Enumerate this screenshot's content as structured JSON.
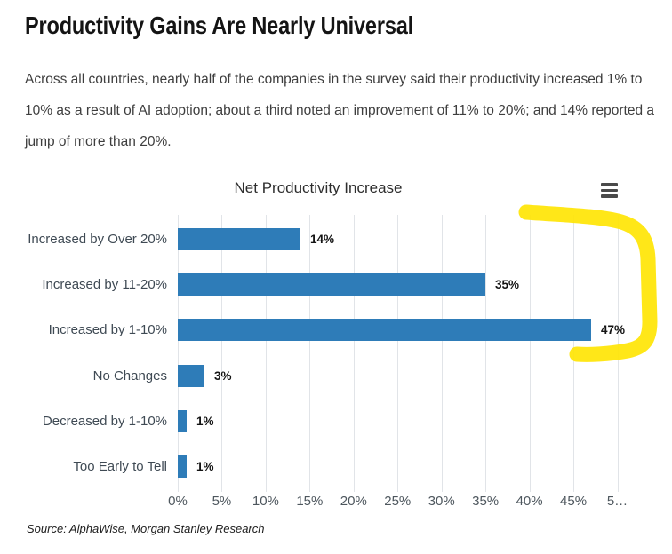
{
  "page": {
    "title": "Productivity Gains Are Nearly Universal",
    "intro": "Across all countries, nearly half of the companies in the survey said their productivity increased 1% to 10% as a result of AI adoption; about a third noted an improvement of 11% to 20%; and 14% reported a jump of more than 20%.",
    "source": "Source: AlphaWise, Morgan Stanley Research"
  },
  "chart": {
    "menu_icon": "hamburger-menu-icon"
  },
  "chart_data": {
    "type": "bar",
    "orientation": "horizontal",
    "title": "Net Productivity Increase",
    "categories": [
      "Increased by Over 20%",
      "Increased by 11-20%",
      "Increased by 1-10%",
      "No Changes",
      "Decreased by 1-10%",
      "Too Early to Tell"
    ],
    "values": [
      14,
      35,
      47,
      3,
      1,
      1
    ],
    "value_labels": [
      "14%",
      "35%",
      "47%",
      "3%",
      "1%",
      "1%"
    ],
    "xlim": [
      0,
      50
    ],
    "x_ticks": [
      0,
      5,
      10,
      15,
      20,
      25,
      30,
      35,
      40,
      45,
      50
    ],
    "x_tick_labels": [
      "0%",
      "5%",
      "10%",
      "15%",
      "20%",
      "25%",
      "30%",
      "35%",
      "40%",
      "45%",
      "5…"
    ],
    "grid": "vertical-light-gray",
    "legend": "none",
    "bar_color": "#2E7CB8",
    "annotation": "hand-drawn yellow highlighter bracket around the 40%-50% region",
    "annotation_color": "#FFE506"
  }
}
